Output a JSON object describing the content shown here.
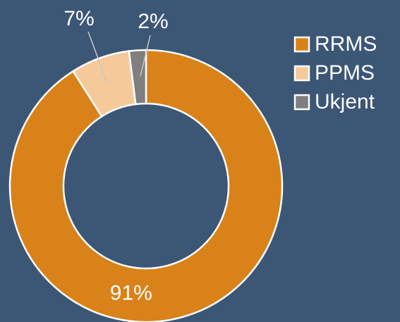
{
  "chart_data": {
    "type": "donut",
    "categories": [
      "RRMS",
      "PPMS",
      "Ukjent"
    ],
    "values": [
      91,
      7,
      2
    ],
    "value_labels": [
      "91%",
      "7%",
      "2%"
    ],
    "colors": [
      "#d9821a",
      "#f6c99b",
      "#7f7f7f"
    ],
    "legend": "right"
  }
}
